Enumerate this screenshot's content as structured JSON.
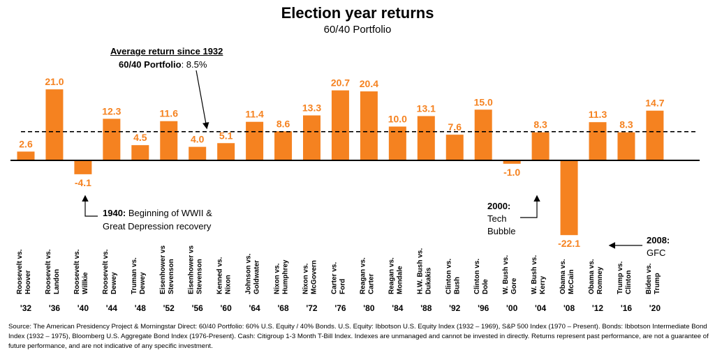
{
  "chart_data": {
    "type": "bar",
    "title": "Election year returns",
    "subtitle": "60/40 Portfolio",
    "categories": [
      "'32",
      "'36",
      "'40",
      "'44",
      "'48",
      "'52",
      "'56",
      "'60",
      "'64",
      "'68",
      "'72",
      "'76",
      "'80",
      "'84",
      "'88",
      "'92",
      "'96",
      "'00",
      "'04",
      "'08",
      "'12",
      "'16",
      "'20"
    ],
    "matchups": [
      "Roosevelt vs.|Hoover",
      "Roosevelt vs.|Landon",
      "Roosevelt vs.|Willkie",
      "Roosevelt vs.|Dewey",
      "Truman vs.|Dewey",
      "Eisenhower vs|Stevenson",
      "Eisenhower vs|Stevenson",
      "Kenned vs.|Nixon",
      "Johnson vs.|Goldwater",
      "Nixon vs.|Humphrey",
      "Nixon vs.|McGovern",
      "Carter vs.|Ford",
      "Reagan vs.|Carter",
      "Reagan vs.|Mondale",
      "H.W. Bush vs.|Dukakis",
      "Clinton vs.|Bush",
      "Clinton vs.|Dole",
      "W. Bush vs.|Gore",
      "W. Bush vs.|Kerry",
      "Obama vs.|McCain",
      "Obama vs.|Romney",
      "Trump vs.|Clinton",
      "Biden vs.|Trump"
    ],
    "values": [
      2.6,
      21.0,
      -4.1,
      12.3,
      4.5,
      11.6,
      4.0,
      5.1,
      11.4,
      8.6,
      13.3,
      20.7,
      20.4,
      10.0,
      13.1,
      7.6,
      15.0,
      -1.0,
      8.3,
      -22.1,
      11.3,
      8.3,
      14.7
    ],
    "data_labels": [
      "2.6",
      "21.0",
      "-4.1",
      "12.3",
      "4.5",
      "11.6",
      "4.0",
      "5.1",
      "11.4",
      "8.6",
      "13.3",
      "20.7",
      "20.4",
      "10.0",
      "13.1",
      "7.6",
      "15.0",
      "-1.0",
      "8.3",
      "-22.1",
      "11.3",
      "8.3",
      "14.7"
    ],
    "average": 8.5,
    "bar_color": "#F58220",
    "label_color": "#F58220",
    "grid": false
  },
  "annotations": {
    "avg_heading": "Average return since 1932",
    "avg_label_bold": "60/40 Portfolio",
    "avg_label_rest": ": 8.5%",
    "ww2_bold": "1940:",
    "ww2_line1": " Beginning of WWII &",
    "ww2_line2": "Great Depression recovery",
    "tech_bold": "2000:",
    "tech_line2": "Tech",
    "tech_line3": "Bubble",
    "gfc_bold": "2008:",
    "gfc_line2": "GFC"
  },
  "footnote": "Source: The American Presidency Project & Morningstar Direct: 60/40 Portfolio: 60% U.S. Equity / 40% Bonds. U.S. Equity: Ibbotson U.S. Equity Index (1932 – 1969), S&P 500 Index (1970 – Present). Bonds: Ibbotson Intermediate Bond Index (1932 – 1975), Bloomberg U.S. Aggregate Bond Index (1976-Present). Cash: Citigroup 1-3 Month T-Bill Index. Indexes are unmanaged and cannot be invested in directly. Returns represent past performance, are not a guarantee of future performance, and are not indicative of any specific investment."
}
